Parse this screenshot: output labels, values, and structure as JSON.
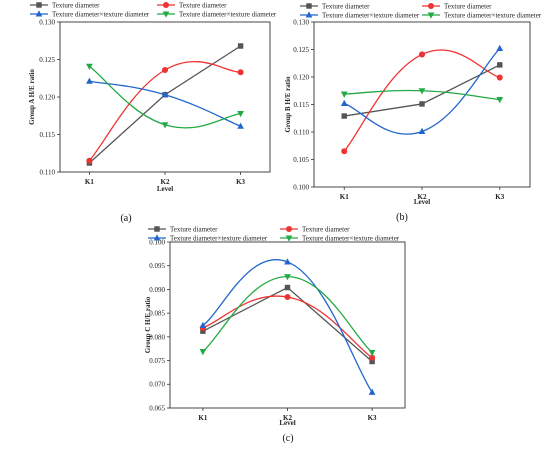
{
  "figure": {
    "panel_labels": [
      "(a)",
      "(b)",
      "(c)"
    ]
  },
  "chart_data": [
    {
      "type": "line",
      "panel": "(a)",
      "categories": [
        "K1",
        "K2",
        "K3"
      ],
      "xlabel": "Level",
      "ylabel": "Group A H/E ratio",
      "ylim": [
        0.11,
        0.13
      ],
      "yticks": [
        "0.110",
        "0.115",
        "0.120",
        "0.125",
        "0.130"
      ],
      "legend": "top, two columns",
      "series": [
        {
          "name": "Texture diameter",
          "color": "#555555",
          "marker": "square",
          "values": [
            0.1112,
            0.1203,
            0.1268
          ]
        },
        {
          "name": "Texture diameter",
          "color": "#ee3333",
          "marker": "circle",
          "values": [
            0.1115,
            0.1236,
            0.1233
          ]
        },
        {
          "name": "Texture diameter×texture diameter",
          "color": "#2266cc",
          "marker": "triangle-up",
          "values": [
            0.1221,
            0.1203,
            0.1161
          ]
        },
        {
          "name": "Texture diameter×texture diameter",
          "color": "#22aa44",
          "marker": "triangle-down",
          "values": [
            0.1241,
            0.1163,
            0.1178
          ]
        }
      ]
    },
    {
      "type": "line",
      "panel": "(b)",
      "categories": [
        "K1",
        "K2",
        "K3"
      ],
      "xlabel": "Level",
      "ylabel": "Group B H/E ratio",
      "ylim": [
        0.1,
        0.13
      ],
      "yticks": [
        "0.100",
        "0.105",
        "0.110",
        "0.115",
        "0.120",
        "0.125",
        "0.130"
      ],
      "legend": "top, two columns",
      "series": [
        {
          "name": "Texture diameter",
          "color": "#555555",
          "marker": "square",
          "values": [
            0.1129,
            0.1151,
            0.1222
          ]
        },
        {
          "name": "Texture diameter",
          "color": "#ee3333",
          "marker": "circle",
          "values": [
            0.1065,
            0.1241,
            0.1199
          ]
        },
        {
          "name": "Texture diameter×texture diameter",
          "color": "#2266cc",
          "marker": "triangle-up",
          "values": [
            0.1152,
            0.1101,
            0.1252
          ]
        },
        {
          "name": "Texture diameter×texture diameter",
          "color": "#22aa44",
          "marker": "triangle-down",
          "values": [
            0.1169,
            0.1175,
            0.1159
          ]
        }
      ]
    },
    {
      "type": "line",
      "panel": "(c)",
      "categories": [
        "K1",
        "K2",
        "K3"
      ],
      "xlabel": "Level",
      "ylabel": "Group C H/E ratio",
      "ylim": [
        0.065,
        0.1
      ],
      "yticks": [
        "0.065",
        "0.070",
        "0.075",
        "0.080",
        "0.085",
        "0.090",
        "0.095",
        "0.100"
      ],
      "legend": "top, two columns",
      "series": [
        {
          "name": "Texture diameter",
          "color": "#555555",
          "marker": "square",
          "values": [
            0.0812,
            0.0904,
            0.0748
          ]
        },
        {
          "name": "Texture diameter",
          "color": "#ee3333",
          "marker": "circle",
          "values": [
            0.0819,
            0.0884,
            0.0756
          ]
        },
        {
          "name": "Texture diameter×texture diameter",
          "color": "#2266cc",
          "marker": "triangle-up",
          "values": [
            0.0824,
            0.0958,
            0.0683
          ]
        },
        {
          "name": "Texture diameter×texture diameter",
          "color": "#22aa44",
          "marker": "triangle-down",
          "values": [
            0.0769,
            0.0927,
            0.0767
          ]
        }
      ]
    }
  ]
}
